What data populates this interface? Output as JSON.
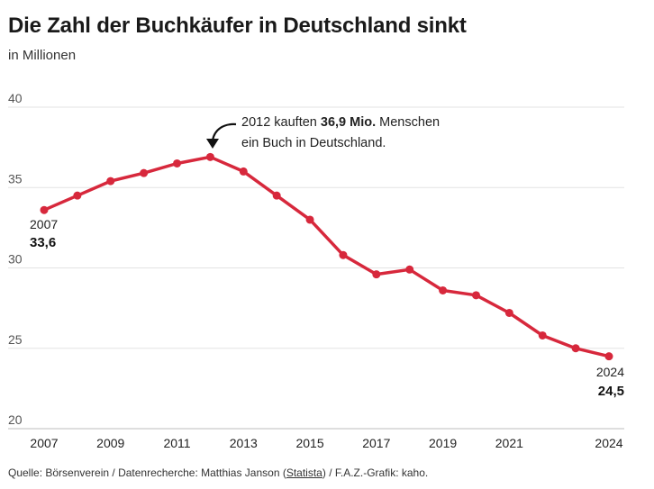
{
  "chart_data": {
    "type": "line",
    "title": "Die Zahl der Buchkäufer in Deutschland sinkt",
    "subtitle": "in Millionen",
    "x": [
      2007,
      2008,
      2009,
      2010,
      2011,
      2012,
      2013,
      2014,
      2015,
      2016,
      2017,
      2018,
      2019,
      2020,
      2021,
      2022,
      2023,
      2024
    ],
    "series": [
      {
        "name": "Buchkäufer",
        "color": "#d7283c",
        "values": [
          33.6,
          34.5,
          35.4,
          35.9,
          36.5,
          36.9,
          36.0,
          34.5,
          33.0,
          30.8,
          29.6,
          29.9,
          28.6,
          28.3,
          27.2,
          25.8,
          25.0,
          24.5
        ]
      }
    ],
    "ylim": [
      20,
      40
    ],
    "yticks": [
      "20",
      "25",
      "30",
      "35",
      "40"
    ],
    "xticks": [
      "2007",
      "2009",
      "2011",
      "2013",
      "2015",
      "2017",
      "2019",
      "2021",
      "2024"
    ],
    "grid": true,
    "start_label": {
      "year": "2007",
      "value": "33,6"
    },
    "end_label": {
      "year": "2024",
      "value": "24,5"
    },
    "annotation": {
      "pre": "2012 kauften ",
      "bold": "36,9 Mio.",
      "post": " Menschen",
      "line2": "ein Buch in Deutschland."
    }
  },
  "source": {
    "prefix": "Quelle: Börsenverein / Datenrecherche: Matthias Janson (",
    "link": "Statista",
    "suffix": ") / F.A.Z.-Grafik: kaho."
  }
}
